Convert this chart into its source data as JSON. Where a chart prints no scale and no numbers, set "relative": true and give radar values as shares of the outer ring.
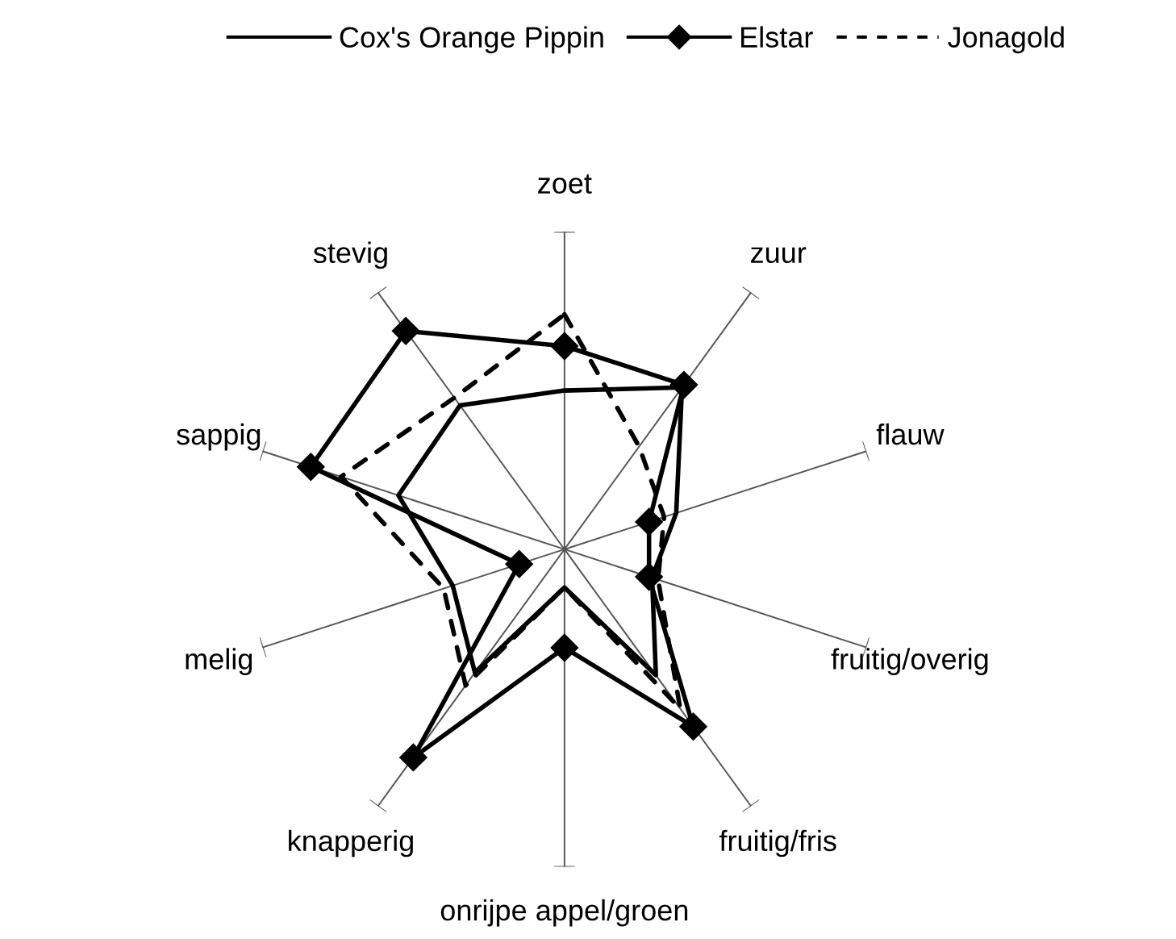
{
  "chart_data": {
    "type": "radar",
    "relative": true,
    "legend": "top",
    "grid": false,
    "categories": [
      "zoet",
      "zuur",
      "flauw",
      "fruitig/overig",
      "fruitig/fris",
      "onrijpe appel/groen",
      "knapperig",
      "melig",
      "sappig",
      "stevig"
    ],
    "series": [
      {
        "name": "Cox's Orange Pippin",
        "color": "#000000",
        "line_style": "solid",
        "marker": "none",
        "values": [
          0.5,
          0.63,
          0.37,
          0.29,
          0.49,
          0.12,
          0.48,
          0.37,
          0.55,
          0.56
        ]
      },
      {
        "name": "Elstar",
        "color": "#000000",
        "line_style": "solid",
        "marker": "diamond",
        "values": [
          0.64,
          0.64,
          0.28,
          0.28,
          0.69,
          0.31,
          0.81,
          0.15,
          0.84,
          0.85
        ]
      },
      {
        "name": "Jonagold",
        "color": "#000000",
        "line_style": "dashed",
        "marker": "none",
        "values": [
          0.74,
          0.4,
          0.33,
          0.31,
          0.62,
          0.12,
          0.53,
          0.4,
          0.74,
          0.59
        ]
      }
    ]
  }
}
